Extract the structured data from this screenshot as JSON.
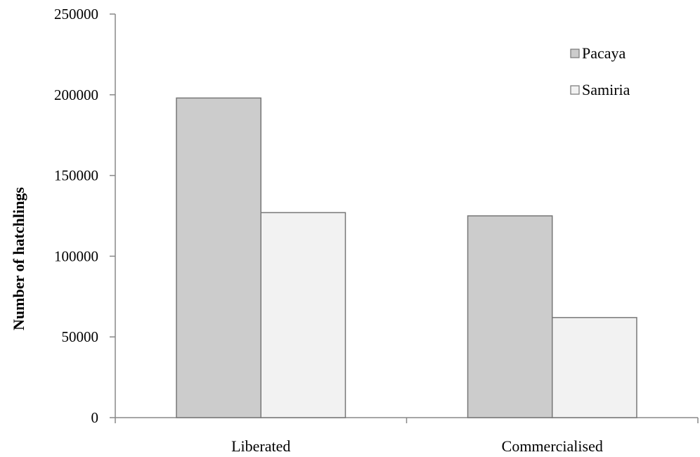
{
  "chart_data": {
    "type": "bar",
    "title": "",
    "xlabel": "",
    "ylabel": "Number of hatchlings",
    "categories": [
      "Liberated",
      "Commercialised"
    ],
    "series": [
      {
        "name": "Pacaya",
        "values": [
          198000,
          125000
        ],
        "color": "#cccccc"
      },
      {
        "name": "Samiria",
        "values": [
          127000,
          62000
        ],
        "color": "#f2f2f2"
      }
    ],
    "ylim": [
      0,
      250000
    ],
    "yticks": [
      0,
      50000,
      100000,
      150000,
      200000,
      250000
    ],
    "ytick_labels": [
      "0",
      "50000",
      "100000",
      "150000",
      "200000",
      "250000"
    ],
    "grid": false,
    "legend_position": "top-right",
    "bar_stroke_color": "#777777",
    "axis_color": "#888888"
  }
}
